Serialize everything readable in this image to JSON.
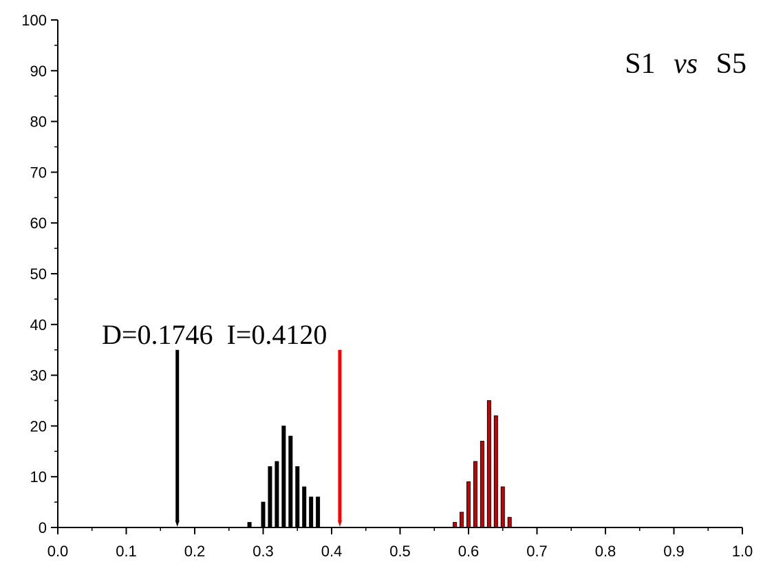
{
  "chart_data": {
    "type": "bar",
    "title": "S1 vs S5",
    "title_parts": [
      "S1",
      "vs",
      "S5"
    ],
    "xlabel": "",
    "ylabel": "",
    "xlim": [
      0.0,
      1.0
    ],
    "ylim": [
      0,
      100
    ],
    "x_ticks": [
      "0.0",
      "0.1",
      "0.2",
      "0.3",
      "0.4",
      "0.5",
      "0.6",
      "0.7",
      "0.8",
      "0.9",
      "1.0"
    ],
    "y_ticks": [
      "0",
      "10",
      "20",
      "30",
      "40",
      "50",
      "60",
      "70",
      "80",
      "90",
      "100"
    ],
    "grid": false,
    "annotation": "D=0.1746  I=0.4120",
    "series": [
      {
        "color": "#000000",
        "x": [
          0.28,
          0.3,
          0.31,
          0.32,
          0.33,
          0.34,
          0.35,
          0.36,
          0.37,
          0.38
        ],
        "values": [
          1,
          5,
          12,
          13,
          20,
          18,
          12,
          8,
          6,
          6
        ]
      },
      {
        "color": "#cc0000",
        "x": [
          0.58,
          0.59,
          0.6,
          0.61,
          0.62,
          0.63,
          0.64,
          0.65,
          0.66
        ],
        "values": [
          1,
          3,
          9,
          13,
          17,
          25,
          22,
          8,
          2
        ]
      }
    ],
    "reference_lines": [
      {
        "x": 0.1746,
        "y_top": 35,
        "color": "#000000"
      },
      {
        "x": 0.412,
        "y_top": 35,
        "color": "#ff0000"
      }
    ]
  }
}
